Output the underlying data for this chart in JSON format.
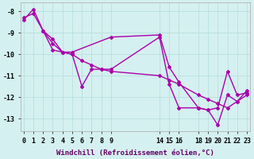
{
  "bg_color": "#d5f0f0",
  "grid_color": "#b8e0e0",
  "line_color": "#aa00aa",
  "line_width": 1.0,
  "marker": "D",
  "marker_size": 2.0,
  "xlabel": "Windchill (Refroidissement éolien,°C)",
  "xlabel_fontsize": 6.5,
  "tick_fontsize": 6.0,
  "ylim": [
    -13.6,
    -7.6
  ],
  "yticks": [
    -13,
    -12,
    -11,
    -10,
    -9,
    -8
  ],
  "xlim": [
    -0.3,
    23.3
  ],
  "xtick_positions": [
    0,
    1,
    2,
    3,
    4,
    5,
    6,
    7,
    8,
    9,
    14,
    15,
    16,
    18,
    19,
    20,
    21,
    22,
    23
  ],
  "xtick_labels": [
    "0",
    "1",
    "2",
    "3",
    "4",
    "5",
    "6",
    "7",
    "8",
    "9",
    "14",
    "15",
    "16",
    "18",
    "19",
    "20",
    "21",
    "22",
    "23"
  ],
  "lines": [
    {
      "x": [
        0,
        1,
        2,
        3,
        4,
        5,
        9,
        14,
        15,
        16,
        18,
        19,
        20,
        21,
        22,
        23
      ],
      "y": [
        -8.4,
        -7.9,
        -8.9,
        -9.8,
        -9.9,
        -9.9,
        -9.2,
        -9.1,
        -10.6,
        -11.3,
        -12.5,
        -12.6,
        -13.3,
        -11.9,
        -12.2,
        -11.7
      ]
    },
    {
      "x": [
        2,
        3,
        4,
        5,
        6,
        7,
        8,
        9,
        14,
        15,
        16,
        18,
        19,
        20,
        21,
        22,
        23
      ],
      "y": [
        -8.9,
        -9.3,
        -9.9,
        -10.0,
        -11.5,
        -10.7,
        -10.7,
        -10.7,
        -9.2,
        -11.4,
        -12.5,
        -12.5,
        -12.6,
        -12.5,
        -10.8,
        -11.9,
        -11.8
      ]
    },
    {
      "x": [
        0,
        1,
        2,
        3,
        4,
        5,
        6,
        7,
        8,
        9,
        14,
        15,
        16,
        18,
        19,
        20,
        21,
        22,
        23
      ],
      "y": [
        -8.3,
        -8.1,
        -8.9,
        -9.5,
        -9.9,
        -10.0,
        -10.3,
        -10.5,
        -10.7,
        -10.8,
        -11.0,
        -11.2,
        -11.4,
        -11.9,
        -12.1,
        -12.3,
        -12.5,
        -12.2,
        -11.9
      ]
    }
  ]
}
